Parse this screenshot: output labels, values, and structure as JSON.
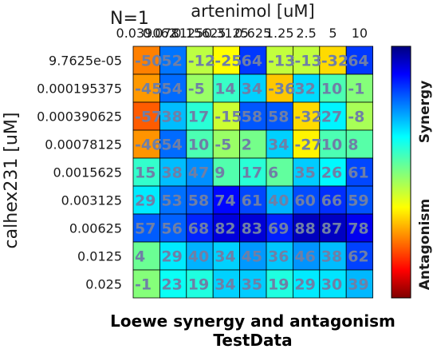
{
  "chart_data": {
    "type": "heatmap",
    "n_label": "N=1",
    "title": "Loewe synergy and antagonism",
    "subtitle": "TestData",
    "xlabel": "artenimol [uM]",
    "ylabel": "calhex231 [uM]",
    "x_ticks": [
      "0.039062",
      "0.078125",
      "0.15625",
      "0.3125",
      "0.625",
      "1.25",
      "2.5",
      "5",
      "10"
    ],
    "y_ticks": [
      "9.7625e-05",
      "0.000195375",
      "0.000390625",
      "0.00078125",
      "0.0015625",
      "0.003125",
      "0.00625",
      "0.0125",
      "0.025"
    ],
    "values": [
      [
        -50,
        52,
        -12,
        -25,
        64,
        -13,
        -13,
        -32,
        64
      ],
      [
        -45,
        54,
        -5,
        14,
        34,
        -36,
        32,
        10,
        -1
      ],
      [
        -57,
        38,
        17,
        -15,
        58,
        58,
        -32,
        27,
        -8
      ],
      [
        -46,
        54,
        10,
        -5,
        2,
        34,
        -27,
        10,
        8
      ],
      [
        15,
        38,
        47,
        9,
        17,
        6,
        35,
        26,
        61
      ],
      [
        29,
        53,
        58,
        74,
        61,
        40,
        60,
        66,
        59
      ],
      [
        57,
        56,
        68,
        82,
        83,
        69,
        88,
        87,
        78
      ],
      [
        4,
        29,
        40,
        34,
        45,
        36,
        46,
        38,
        62
      ],
      [
        -1,
        23,
        19,
        34,
        35,
        19,
        29,
        30,
        39
      ]
    ],
    "colorbar": {
      "top_label": "Synergy",
      "bottom_label": "Antagonism",
      "range": [
        -100,
        100
      ],
      "colormap": "jet"
    },
    "label_color": "#6f7fa6"
  }
}
